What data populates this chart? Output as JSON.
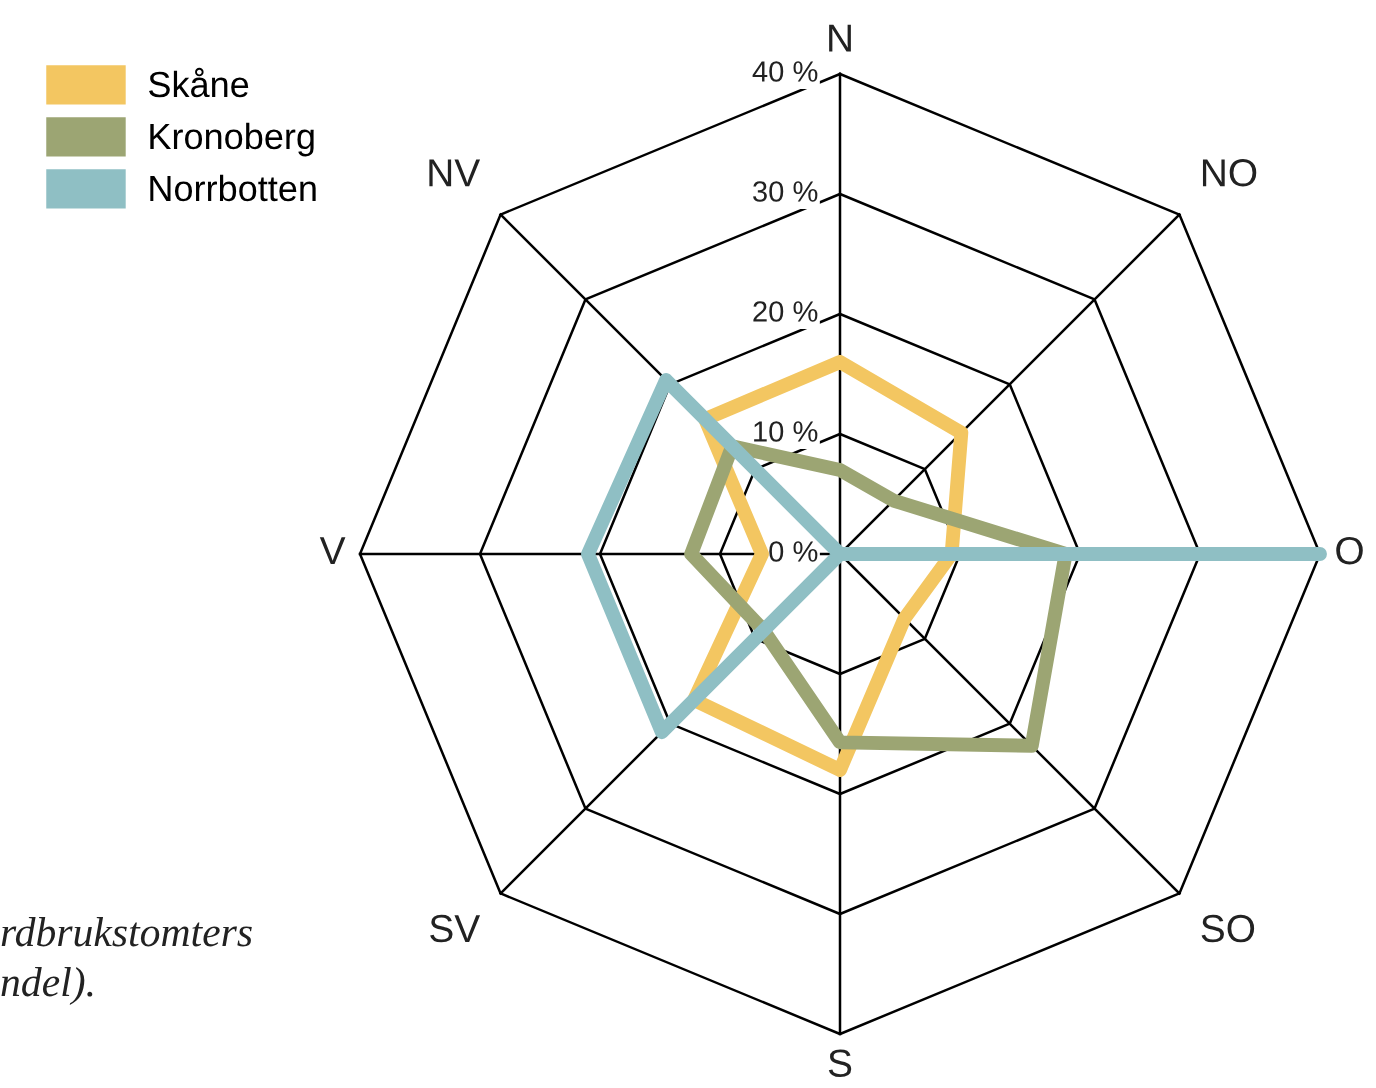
{
  "chart_data": {
    "type": "radar",
    "categories": [
      "N",
      "NO",
      "O",
      "SO",
      "S",
      "SV",
      "V",
      "NV"
    ],
    "ylim": [
      0,
      40
    ],
    "yticks": [
      {
        "value": 0,
        "label": "0 %"
      },
      {
        "value": 10,
        "label": "10 %"
      },
      {
        "value": 20,
        "label": "20 %"
      },
      {
        "value": 30,
        "label": "30 %"
      },
      {
        "value": 40,
        "label": "40 %"
      }
    ],
    "series": [
      {
        "name": "Skåne",
        "color": "#f3c661",
        "values": [
          16,
          14.3,
          9.3,
          7.6,
          18,
          17.2,
          6.5,
          15.9
        ]
      },
      {
        "name": "Kronoberg",
        "color": "#9ca573",
        "values": [
          7,
          6.3,
          18.8,
          22.6,
          15.7,
          9,
          12.4,
          12.7
        ]
      },
      {
        "name": "Norrbotten",
        "color": "#8fbfc4",
        "values": [
          0,
          0,
          40,
          0,
          0,
          21,
          21,
          20.5
        ]
      }
    ],
    "grid": true,
    "legend": "top left",
    "line_style": "solid",
    "annotations": [
      "rdbrukstomters",
      "ndel)."
    ]
  }
}
